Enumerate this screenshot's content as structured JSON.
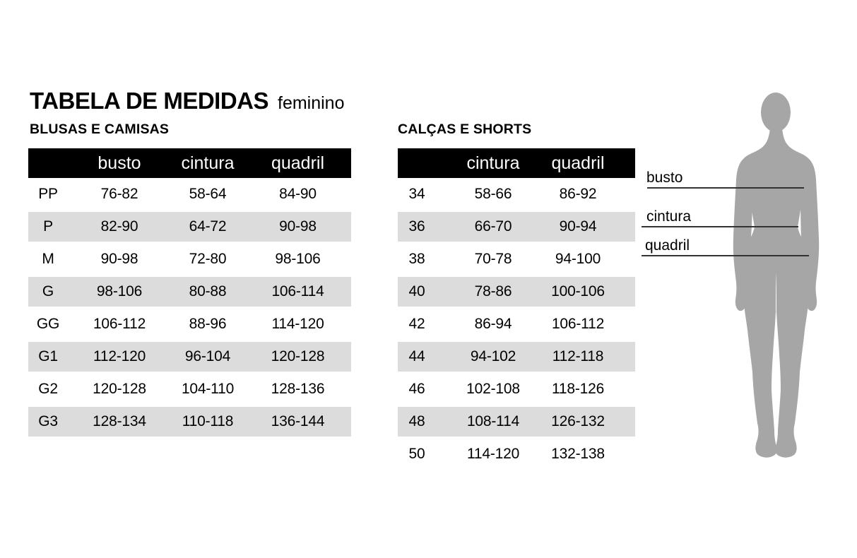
{
  "page": {
    "title": "TABELA DE MEDIDAS",
    "subtitle": "feminino"
  },
  "colors": {
    "header_bg": "#000000",
    "header_text": "#ffffff",
    "row_alt_bg": "#dcdcdc",
    "silhouette": "#a6a6a6",
    "line": "#333333",
    "text": "#000000"
  },
  "tables": [
    {
      "title": "BLUSAS E CAMISAS",
      "columns": [
        "",
        "busto",
        "cintura",
        "quadril"
      ],
      "rows": [
        [
          "PP",
          "76-82",
          "58-64",
          "84-90"
        ],
        [
          "P",
          "82-90",
          "64-72",
          "90-98"
        ],
        [
          "M",
          "90-98",
          "72-80",
          "98-106"
        ],
        [
          "G",
          "98-106",
          "80-88",
          "106-114"
        ],
        [
          "GG",
          "106-112",
          "88-96",
          "114-120"
        ],
        [
          "G1",
          "112-120",
          "96-104",
          "120-128"
        ],
        [
          "G2",
          "120-128",
          "104-110",
          "128-136"
        ],
        [
          "G3",
          "128-134",
          "110-118",
          "136-144"
        ]
      ]
    },
    {
      "title": "CALÇAS E SHORTS",
      "columns": [
        "",
        "cintura",
        "quadril"
      ],
      "rows": [
        [
          "34",
          "58-66",
          "86-92"
        ],
        [
          "36",
          "66-70",
          "90-94"
        ],
        [
          "38",
          "70-78",
          "94-100"
        ],
        [
          "40",
          "78-86",
          "100-106"
        ],
        [
          "42",
          "86-94",
          "106-112"
        ],
        [
          "44",
          "94-102",
          "112-118"
        ],
        [
          "46",
          "102-108",
          "118-126"
        ],
        [
          "48",
          "108-114",
          "126-132"
        ],
        [
          "50",
          "114-120",
          "132-138"
        ]
      ]
    }
  ],
  "figure": {
    "labels": [
      {
        "text": "busto"
      },
      {
        "text": "cintura"
      },
      {
        "text": "quadril"
      }
    ]
  }
}
